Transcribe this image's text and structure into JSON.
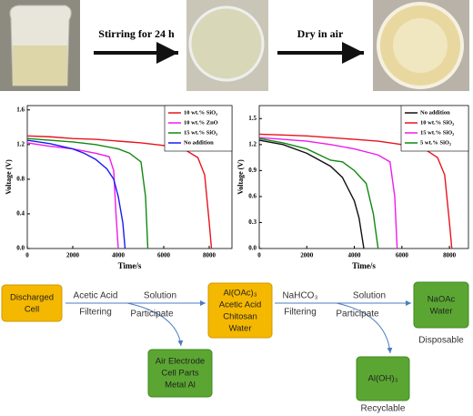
{
  "steps": {
    "stir": "Stirring for 24 h",
    "dry": "Dry in air"
  },
  "chart_data": [
    {
      "type": "line",
      "ylabel": "Voltage (V)",
      "xlabel": "Time/s",
      "legend": "upper right",
      "xlim": [
        0,
        9000
      ],
      "xticks": [
        0,
        2000,
        4000,
        6000,
        8000
      ],
      "ylim": [
        0,
        1.65
      ],
      "yticks": [
        {
          "value": 0,
          "label": "0.0"
        },
        0.4,
        0.8,
        1.2,
        1.6
      ],
      "series": [
        {
          "name": "10 wt.% SiO₂",
          "color": "#e8141c",
          "x": [
            0,
            1000,
            2000,
            3000,
            4000,
            5000,
            6000,
            7000,
            7500,
            7800,
            8000,
            8100
          ],
          "values": [
            1.3,
            1.29,
            1.27,
            1.26,
            1.24,
            1.22,
            1.19,
            1.13,
            1.05,
            0.85,
            0.3,
            0
          ]
        },
        {
          "name": "10 wt.% ZnO",
          "color": "#ee1cee",
          "x": [
            0,
            500,
            1000,
            2000,
            3000,
            3600,
            3800,
            3900,
            4000
          ],
          "values": [
            1.22,
            1.2,
            1.18,
            1.15,
            1.1,
            1.06,
            0.9,
            0.4,
            0
          ]
        },
        {
          "name": "15 wt.% SiO₂",
          "color": "#118811",
          "x": [
            0,
            1000,
            2000,
            3000,
            4000,
            4500,
            5000,
            5200,
            5300
          ],
          "values": [
            1.27,
            1.25,
            1.23,
            1.2,
            1.15,
            1.1,
            1.0,
            0.6,
            0
          ]
        },
        {
          "name": "No addition",
          "color": "#1a1aee",
          "x": [
            0,
            1000,
            2000,
            2500,
            3000,
            3500,
            3800,
            4000,
            4200,
            4300
          ],
          "values": [
            1.25,
            1.21,
            1.15,
            1.1,
            1.03,
            0.92,
            0.8,
            0.6,
            0.3,
            0
          ]
        }
      ]
    },
    {
      "type": "line",
      "ylabel": "Voltage (V)",
      "xlabel": "Time/s",
      "legend": "upper right",
      "xlim": [
        0,
        8800
      ],
      "xticks": [
        0,
        2000,
        4000,
        6000,
        8000
      ],
      "ylim": [
        0,
        1.65
      ],
      "yticks": [
        {
          "value": 0,
          "label": "0.0"
        },
        0.3,
        0.6,
        0.9,
        1.2,
        1.5
      ],
      "series": [
        {
          "name": "No addition",
          "color": "#111111",
          "x": [
            0,
            1000,
            2000,
            3000,
            3500,
            4000,
            4200,
            4400
          ],
          "values": [
            1.25,
            1.2,
            1.1,
            0.95,
            0.82,
            0.55,
            0.35,
            0
          ]
        },
        {
          "name": "10 wt.% SiO₂",
          "color": "#e8141c",
          "x": [
            0,
            1000,
            2000,
            3000,
            4000,
            5000,
            6000,
            7000,
            7500,
            7800,
            8000,
            8100
          ],
          "values": [
            1.32,
            1.31,
            1.3,
            1.28,
            1.26,
            1.24,
            1.2,
            1.14,
            1.05,
            0.85,
            0.3,
            0
          ]
        },
        {
          "name": "15 wt.% SiO₂",
          "color": "#ee1cee",
          "x": [
            0,
            1000,
            2000,
            3000,
            4000,
            5000,
            5500,
            5700,
            5800
          ],
          "values": [
            1.28,
            1.26,
            1.24,
            1.2,
            1.15,
            1.08,
            1.0,
            0.6,
            0
          ]
        },
        {
          "name": "5 wt.% SiO₂",
          "color": "#118811",
          "x": [
            0,
            1000,
            2000,
            3000,
            3500,
            4000,
            4500,
            4800,
            5000
          ],
          "values": [
            1.27,
            1.22,
            1.15,
            1.02,
            1.0,
            0.9,
            0.75,
            0.4,
            0
          ]
        }
      ]
    }
  ],
  "flowchart": {
    "nodes": [
      {
        "lines": [
          "Discharged",
          "Cell"
        ]
      },
      {
        "lines": [
          "Al(OAc)₃",
          "Acetic Acid",
          "Chitosan",
          "Water"
        ]
      },
      {
        "lines": [
          "Air Electrode",
          "Cell Parts",
          "Metal Al"
        ]
      },
      {
        "lines": [
          "NaOAc",
          "Water"
        ],
        "caption": "Disposable"
      },
      {
        "lines": [
          "Al(OH)₃"
        ],
        "caption": "Recyclable"
      }
    ],
    "edges": [
      {
        "above": "Acetic Acid",
        "below": "Filtering"
      },
      {
        "above": "Solution",
        "branch": "Participate"
      },
      {
        "above": "NaHCO₃",
        "below": "Filtering"
      },
      {
        "above": "Solution",
        "branch": "Participate"
      }
    ]
  }
}
